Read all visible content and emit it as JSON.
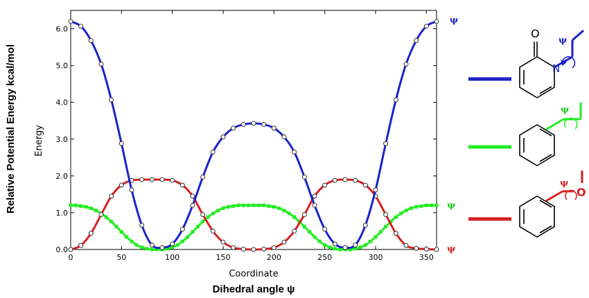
{
  "figure": {
    "outer_ylabel": "Relative Potential Energy kcal/mol",
    "outer_xlabel": "Dihedral angle ψ",
    "psi_symbol": "ψ",
    "atom_O": "O",
    "atom_N": "N"
  },
  "colors": {
    "blue": "#1a22c8",
    "red": "#d42020",
    "green": "#22ee22"
  },
  "chart_data": {
    "type": "line",
    "xlabel": "Coordinate",
    "ylabel": "Energy",
    "xlim": [
      0,
      360
    ],
    "ylim": [
      0,
      6.5
    ],
    "xticks": [
      0,
      50,
      100,
      150,
      200,
      250,
      300,
      350
    ],
    "yticks": [
      0.0,
      1.0,
      2.0,
      3.0,
      4.0,
      5.0,
      6.0
    ],
    "ytick_labels": [
      "0.0",
      "1.0",
      "2.0",
      "3.0",
      "4.0",
      "5.0",
      "6.0"
    ],
    "grid": false,
    "series": [
      {
        "color": "#1a22c8",
        "marker": "open-circle",
        "x": [
          0,
          10,
          20,
          30,
          40,
          50,
          60,
          70,
          80,
          90,
          100,
          110,
          120,
          130,
          140,
          150,
          160,
          170,
          180,
          190,
          200,
          210,
          220,
          230,
          240,
          250,
          260,
          270,
          280,
          290,
          300,
          310,
          320,
          330,
          340,
          350,
          360
        ],
        "y": [
          6.2,
          6.07,
          5.68,
          5.04,
          4.07,
          2.88,
          1.62,
          0.66,
          0.12,
          0.05,
          0.15,
          0.55,
          1.2,
          1.97,
          2.65,
          3.06,
          3.3,
          3.4,
          3.43,
          3.4,
          3.3,
          3.06,
          2.65,
          1.97,
          1.2,
          0.55,
          0.15,
          0.05,
          0.12,
          0.66,
          1.62,
          2.88,
          4.07,
          5.04,
          5.68,
          6.07,
          6.2
        ]
      },
      {
        "color": "#d42020",
        "marker": "open-circle",
        "x": [
          0,
          10,
          20,
          30,
          40,
          50,
          60,
          70,
          80,
          90,
          100,
          110,
          120,
          130,
          140,
          150,
          160,
          170,
          180,
          190,
          200,
          210,
          220,
          230,
          240,
          250,
          260,
          270,
          280,
          290,
          300,
          310,
          320,
          330,
          340,
          350,
          360
        ],
        "y": [
          0.0,
          0.11,
          0.44,
          0.95,
          1.45,
          1.75,
          1.88,
          1.9,
          1.9,
          1.9,
          1.88,
          1.75,
          1.45,
          0.95,
          0.5,
          0.2,
          0.05,
          0.01,
          0.0,
          0.01,
          0.05,
          0.2,
          0.5,
          0.95,
          1.45,
          1.75,
          1.88,
          1.9,
          1.88,
          1.75,
          1.45,
          0.95,
          0.44,
          0.11,
          0.03,
          0.01,
          0.0
        ]
      },
      {
        "color": "#22ee22",
        "marker": "filled-square",
        "x": [
          0,
          5,
          10,
          15,
          20,
          25,
          30,
          35,
          40,
          45,
          50,
          55,
          60,
          65,
          70,
          75,
          80,
          85,
          90,
          95,
          100,
          105,
          110,
          115,
          120,
          125,
          130,
          135,
          140,
          145,
          150,
          155,
          160,
          165,
          170,
          175,
          180,
          185,
          190,
          195,
          200,
          205,
          210,
          215,
          220,
          225,
          230,
          235,
          240,
          245,
          250,
          255,
          260,
          265,
          270,
          275,
          280,
          285,
          290,
          295,
          300,
          305,
          310,
          315,
          320,
          325,
          330,
          335,
          340,
          345,
          350,
          355,
          360
        ],
        "y": [
          1.2,
          1.2,
          1.18,
          1.16,
          1.12,
          1.06,
          0.98,
          0.88,
          0.76,
          0.62,
          0.48,
          0.34,
          0.22,
          0.12,
          0.06,
          0.02,
          0.0,
          0.0,
          0.0,
          0.02,
          0.06,
          0.12,
          0.22,
          0.34,
          0.48,
          0.62,
          0.76,
          0.88,
          0.98,
          1.06,
          1.12,
          1.16,
          1.18,
          1.2,
          1.2,
          1.2,
          1.2,
          1.2,
          1.2,
          1.18,
          1.16,
          1.12,
          1.06,
          0.98,
          0.88,
          0.76,
          0.62,
          0.48,
          0.34,
          0.22,
          0.12,
          0.06,
          0.02,
          0.0,
          0.0,
          0.0,
          0.02,
          0.06,
          0.12,
          0.22,
          0.34,
          0.48,
          0.62,
          0.76,
          0.88,
          0.98,
          1.06,
          1.12,
          1.16,
          1.18,
          1.2,
          1.2,
          1.2
        ]
      }
    ]
  }
}
